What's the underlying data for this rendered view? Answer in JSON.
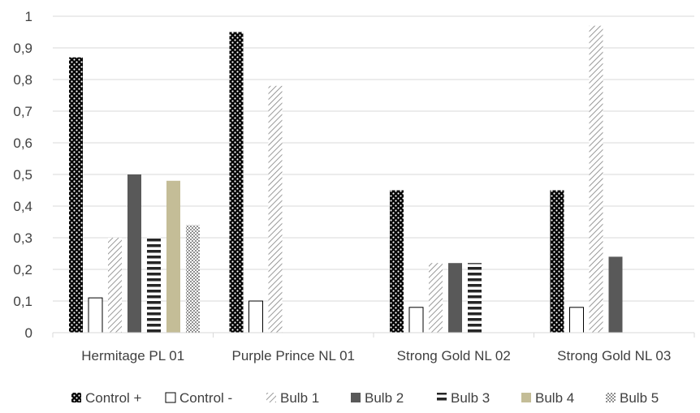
{
  "chart_data": {
    "type": "bar",
    "categories": [
      "Hermitage PL 01",
      "Purple Prince NL 01",
      "Strong Gold NL 02",
      "Strong Gold NL 03"
    ],
    "series": [
      {
        "name": "Control +",
        "values": [
          0.87,
          0.95,
          0.45,
          0.45
        ],
        "pattern": "dots-dark",
        "color": "#000000"
      },
      {
        "name": "Control -",
        "values": [
          0.11,
          0.1,
          0.08,
          0.08
        ],
        "pattern": "solid-white",
        "color": "#ffffff"
      },
      {
        "name": "Bulb 1",
        "values": [
          0.3,
          0.78,
          0.22,
          0.97
        ],
        "pattern": "diagonal",
        "color": "#808080"
      },
      {
        "name": "Bulb 2",
        "values": [
          0.5,
          null,
          0.22,
          0.24
        ],
        "pattern": "solid",
        "color": "#595959"
      },
      {
        "name": "Bulb 3",
        "values": [
          0.3,
          null,
          0.22,
          null
        ],
        "pattern": "horizontal",
        "color": "#262626"
      },
      {
        "name": "Bulb 4",
        "values": [
          0.48,
          null,
          null,
          null
        ],
        "pattern": "solid",
        "color": "#c4bd97"
      },
      {
        "name": "Bulb 5",
        "values": [
          0.34,
          null,
          null,
          null
        ],
        "pattern": "dots-light",
        "color": "#404040"
      }
    ],
    "ylim": [
      0,
      1
    ],
    "yticks": [
      "0",
      "0,1",
      "0,2",
      "0,3",
      "0,4",
      "0,5",
      "0,6",
      "0,7",
      "0,8",
      "0,9",
      "1"
    ],
    "grid": true,
    "legend_position": "bottom",
    "title": "",
    "xlabel": "",
    "ylabel": ""
  }
}
